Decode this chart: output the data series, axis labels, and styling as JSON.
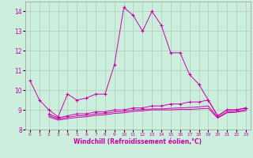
{
  "xlabel": "Windchill (Refroidissement éolien,°C)",
  "bg_color": "#cceedd",
  "grid_color": "#aaccbb",
  "line_color": "#cc00aa",
  "xlim": [
    -0.5,
    23.5
  ],
  "ylim": [
    8.0,
    14.5
  ],
  "yticks": [
    8,
    9,
    10,
    11,
    12,
    13,
    14
  ],
  "xticks": [
    0,
    1,
    2,
    3,
    4,
    5,
    6,
    7,
    8,
    9,
    10,
    11,
    12,
    13,
    14,
    15,
    16,
    17,
    18,
    19,
    20,
    21,
    22,
    23
  ],
  "line1_x": [
    0,
    1,
    2,
    3,
    4,
    5,
    6,
    7,
    8,
    9,
    10,
    11,
    12,
    13,
    14,
    15,
    16,
    17,
    18,
    19,
    20,
    21,
    22,
    23
  ],
  "line1_y": [
    10.5,
    9.5,
    9.0,
    8.65,
    9.8,
    9.5,
    9.6,
    9.8,
    9.8,
    11.3,
    14.2,
    13.8,
    13.0,
    14.0,
    13.3,
    11.9,
    11.9,
    10.8,
    10.3,
    9.5,
    8.7,
    9.0,
    9.0,
    9.1
  ],
  "line2_x": [
    2,
    3,
    4,
    5,
    6,
    7,
    8,
    9,
    10,
    11,
    12,
    13,
    14,
    15,
    16,
    17,
    18,
    19,
    20,
    21,
    22,
    23
  ],
  "line2_y": [
    8.8,
    8.6,
    8.7,
    8.8,
    8.8,
    8.9,
    8.9,
    9.0,
    9.0,
    9.1,
    9.1,
    9.2,
    9.2,
    9.3,
    9.3,
    9.4,
    9.4,
    9.5,
    8.7,
    9.0,
    9.0,
    9.1
  ],
  "line3_x": [
    2,
    3,
    4,
    5,
    6,
    7,
    8,
    9,
    10,
    11,
    12,
    13,
    14,
    15,
    16,
    17,
    18,
    19,
    20,
    21,
    22,
    23
  ],
  "line3_y": [
    8.65,
    8.48,
    8.55,
    8.62,
    8.65,
    8.72,
    8.75,
    8.82,
    8.85,
    8.92,
    8.95,
    9.0,
    9.0,
    9.0,
    9.02,
    9.02,
    9.05,
    9.08,
    8.58,
    8.85,
    8.88,
    8.95
  ],
  "line4_x": [
    2,
    3,
    4,
    5,
    6,
    7,
    8,
    9,
    10,
    11,
    12,
    13,
    14,
    15,
    16,
    17,
    18,
    19,
    20,
    21,
    22,
    23
  ],
  "line4_y": [
    8.72,
    8.54,
    8.62,
    8.7,
    8.72,
    8.8,
    8.82,
    8.9,
    8.92,
    9.0,
    9.02,
    9.05,
    9.05,
    9.08,
    9.1,
    9.12,
    9.15,
    9.2,
    8.62,
    8.9,
    8.92,
    9.02
  ]
}
